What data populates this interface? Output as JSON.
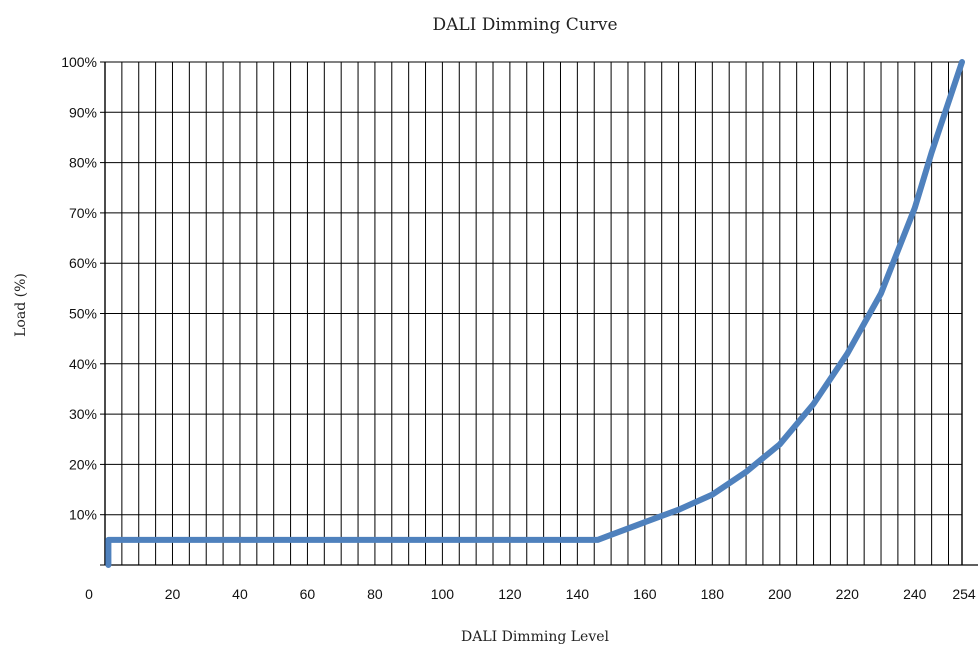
{
  "chart_data": {
    "type": "line",
    "title": "DALI Dimming Curve",
    "xlabel": "DALI Dimming Level",
    "ylabel": "Load (%)",
    "xlim": [
      0,
      254
    ],
    "ylim": [
      0,
      100
    ],
    "x_ticks": [
      "0",
      "20",
      "40",
      "60",
      "80",
      "100",
      "120",
      "140",
      "160",
      "180",
      "200",
      "220",
      "240",
      "254"
    ],
    "x_tick_values": [
      0,
      20,
      40,
      60,
      80,
      100,
      120,
      140,
      160,
      180,
      200,
      220,
      240,
      254
    ],
    "y_ticks": [
      "10%",
      "20%",
      "30%",
      "40%",
      "50%",
      "60%",
      "70%",
      "80%",
      "90%",
      "100%"
    ],
    "y_tick_values": [
      10,
      20,
      30,
      40,
      50,
      60,
      70,
      80,
      90,
      100
    ],
    "grid": true,
    "line_color": "#4f81bd",
    "series": [
      {
        "x": [
          1,
          1,
          146,
          150,
          160,
          170,
          180,
          190,
          200,
          210,
          220,
          230,
          240,
          245,
          250,
          254
        ],
        "y": [
          0,
          5,
          5,
          6,
          8.5,
          11,
          14,
          18.5,
          24,
          32,
          42,
          54,
          71,
          82,
          92,
          100
        ]
      }
    ]
  }
}
